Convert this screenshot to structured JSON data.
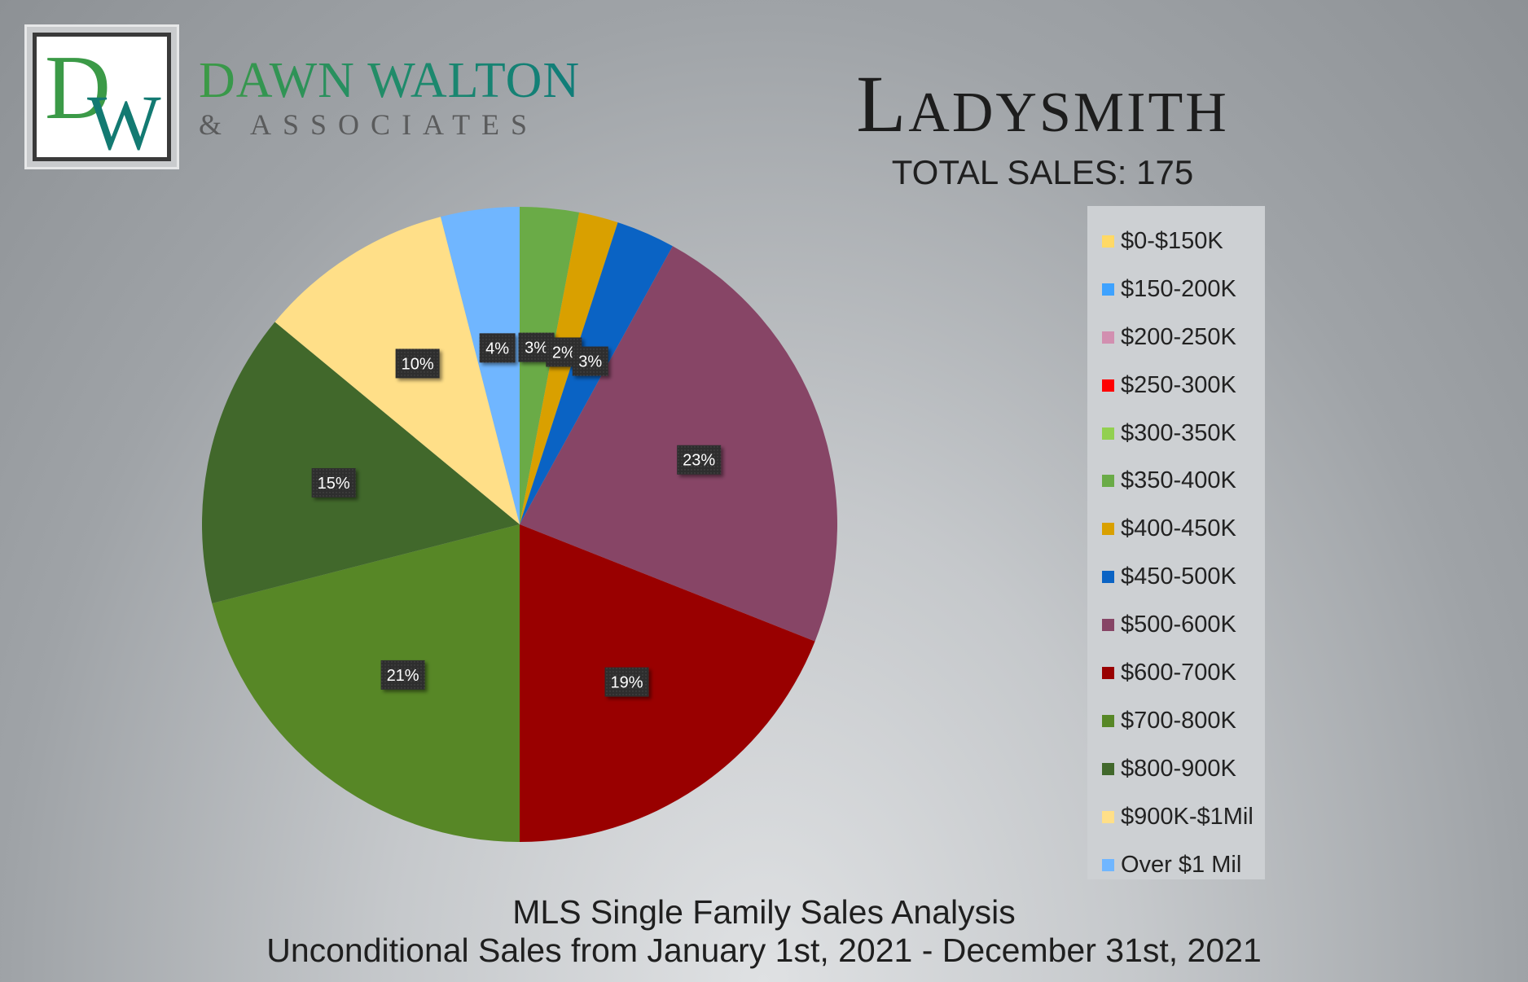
{
  "brand": {
    "monogram": "DW",
    "name": "DAWN WALTON",
    "subtitle": "& ASSOCIATES"
  },
  "header": {
    "title": "Ladysmith",
    "total_sales": "TOTAL SALES: 175"
  },
  "footer": {
    "line1": "MLS Single Family Sales Analysis",
    "line2": "Unconditional Sales from January 1st, 2021 - December 31st, 2021"
  },
  "chart_data": {
    "type": "pie",
    "title": "Ladysmith",
    "legend_position": "right",
    "label_position": "inside",
    "slices": [
      {
        "label": "$0-$150K",
        "value": 0,
        "color": "#ffd966",
        "data_label": ""
      },
      {
        "label": "$150-200K",
        "value": 0,
        "color": "#3ea2ff",
        "data_label": ""
      },
      {
        "label": "$200-250K",
        "value": 0,
        "color": "#d28fb0",
        "data_label": ""
      },
      {
        "label": "$250-300K",
        "value": 0,
        "color": "#ff0000",
        "data_label": ""
      },
      {
        "label": "$300-350K",
        "value": 0,
        "color": "#92d050",
        "data_label": ""
      },
      {
        "label": "$350-400K",
        "value": 3,
        "color": "#6aab47",
        "data_label": "3%"
      },
      {
        "label": "$400-450K",
        "value": 2,
        "color": "#d9a000",
        "data_label": "2%"
      },
      {
        "label": "$450-500K",
        "value": 3,
        "color": "#0a63c4",
        "data_label": "3%"
      },
      {
        "label": "$500-600K",
        "value": 23,
        "color": "#874566",
        "data_label": "23%"
      },
      {
        "label": "$600-700K",
        "value": 19,
        "color": "#990000",
        "data_label": "19%"
      },
      {
        "label": "$700-800K",
        "value": 21,
        "color": "#578726",
        "data_label": "21%"
      },
      {
        "label": "$800-900K",
        "value": 15,
        "color": "#41682b",
        "data_label": "15%"
      },
      {
        "label": "$900K-$1Mil",
        "value": 10,
        "color": "#ffdf88",
        "data_label": "10%"
      },
      {
        "label": "Over $1 Mil",
        "value": 4,
        "color": "#70b6ff",
        "data_label": "4%"
      }
    ]
  }
}
